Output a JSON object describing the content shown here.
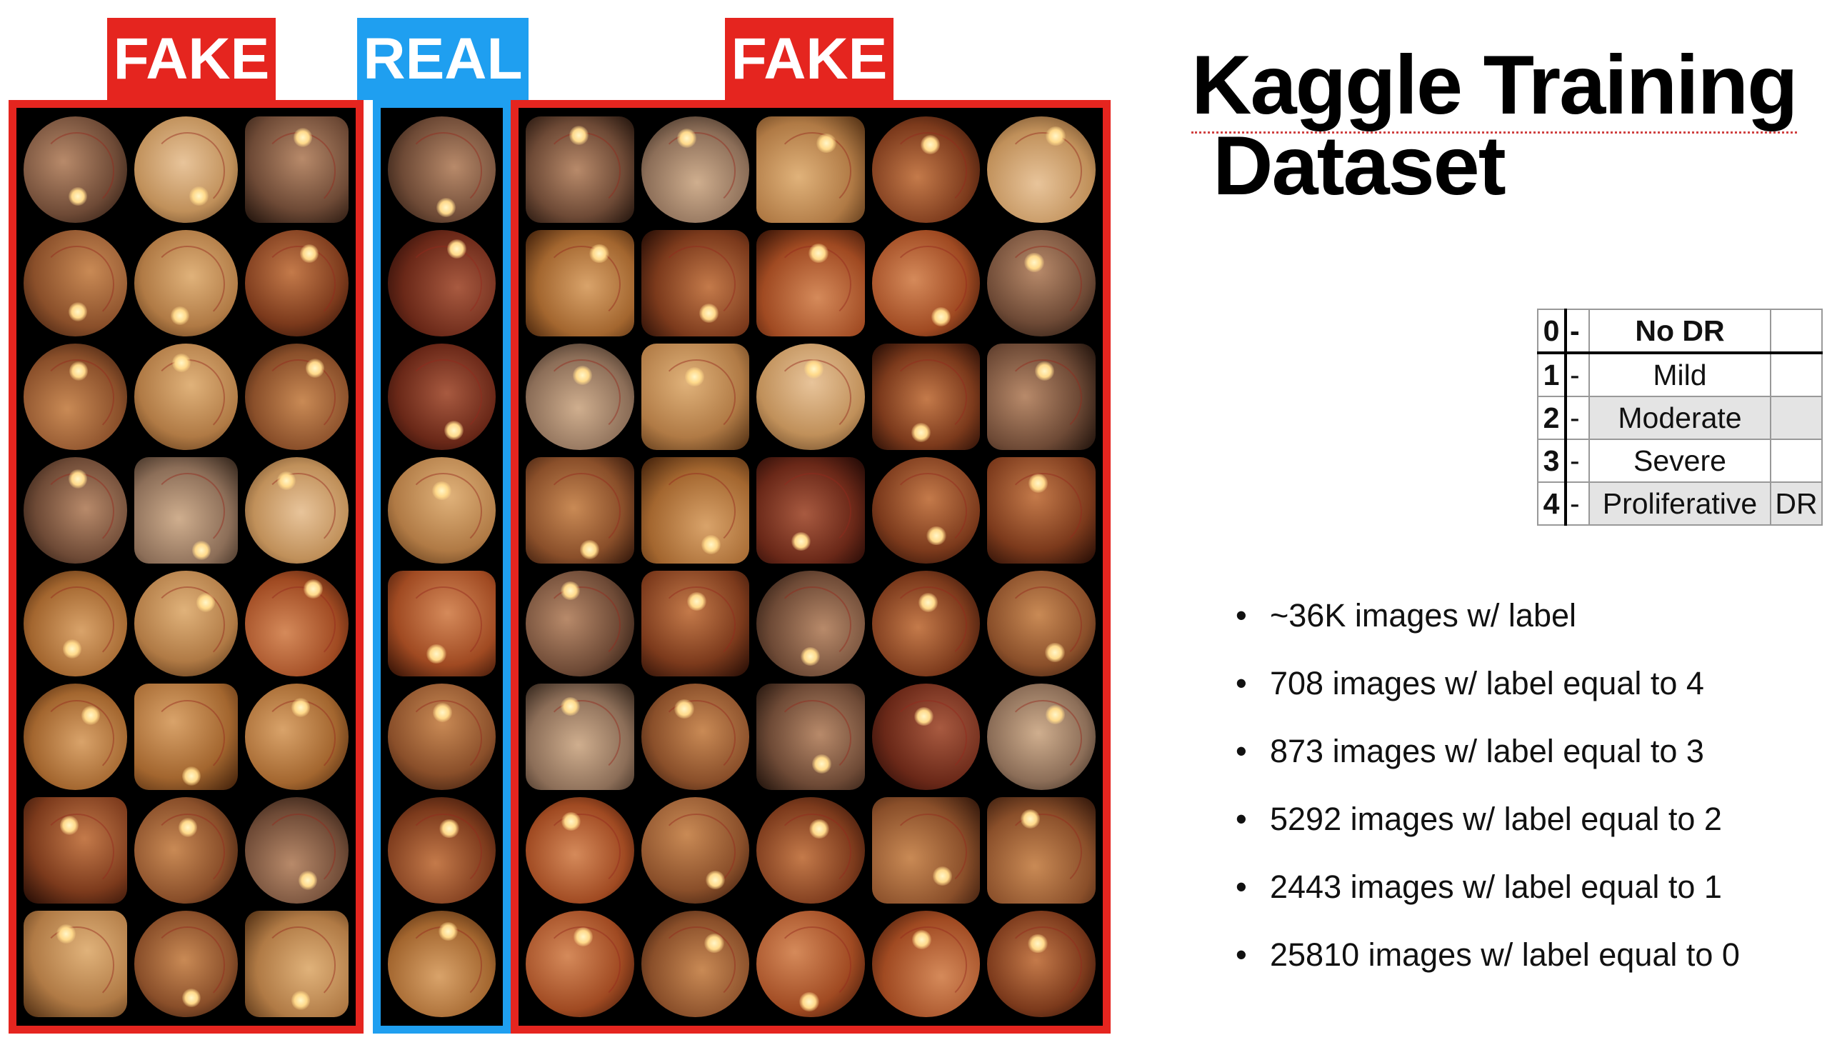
{
  "labels": {
    "fake_left": "FAKE",
    "real": "REAL",
    "fake_right": "FAKE"
  },
  "title": {
    "line1": "Kaggle Training",
    "line2": "Dataset"
  },
  "legend": [
    {
      "num": "0",
      "dash": "-",
      "name": "No DR",
      "extra": ""
    },
    {
      "num": "1",
      "dash": "-",
      "name": "Mild",
      "extra": ""
    },
    {
      "num": "2",
      "dash": "-",
      "name": "Moderate",
      "extra": ""
    },
    {
      "num": "3",
      "dash": "-",
      "name": "Severe",
      "extra": ""
    },
    {
      "num": "4",
      "dash": "-",
      "name": "Proliferative",
      "extra": "DR"
    }
  ],
  "bullets": [
    "~36K images w/ label",
    "708 images w/ label equal to 4",
    "873 images w/ label equal to 3",
    "5292 images w/ label equal to 2",
    "2443 images w/ label equal to 1",
    "25810 images w/ label equal to 0"
  ],
  "bullet_glyph": "•",
  "colors": {
    "fake": "#e5251f",
    "real": "#1f9ff0"
  },
  "grids": {
    "fake_left": {
      "rows": 8,
      "cols": 3
    },
    "real": {
      "rows": 8,
      "cols": 1
    },
    "fake_right": {
      "rows": 8,
      "cols": 5
    }
  }
}
